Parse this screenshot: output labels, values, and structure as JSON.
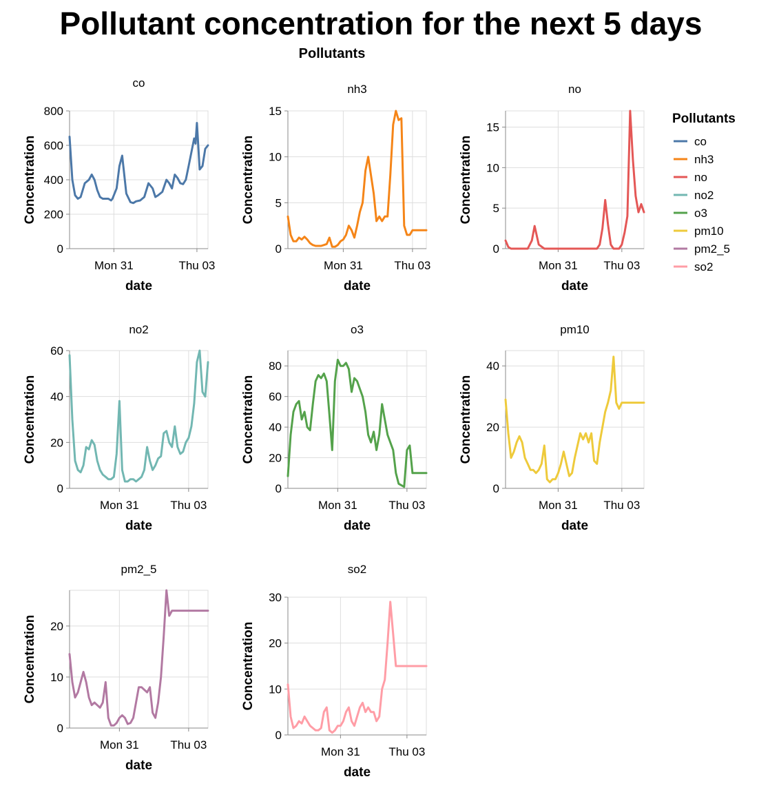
{
  "title": "Pollutant concentration for the next 5 days",
  "facet_header": "Pollutants",
  "legend": {
    "title": "Pollutants",
    "items": [
      {
        "label": "co",
        "color": "#4c78a8"
      },
      {
        "label": "nh3",
        "color": "#f58518"
      },
      {
        "label": "no",
        "color": "#e45756"
      },
      {
        "label": "no2",
        "color": "#72b7b2"
      },
      {
        "label": "o3",
        "color": "#54a24b"
      },
      {
        "label": "pm10",
        "color": "#eeca3b"
      },
      {
        "label": "pm2_5",
        "color": "#b279a2"
      },
      {
        "label": "so2",
        "color": "#ff9da6"
      }
    ]
  },
  "chart_data": [
    {
      "type": "line",
      "facet": "co",
      "color": "#4c78a8",
      "xlabel": "date",
      "ylabel": "Concentration",
      "ylim": [
        0,
        800
      ],
      "yticks": [
        0,
        200,
        400,
        600,
        800
      ],
      "xlim": [
        0,
        5
      ],
      "xticks": [
        {
          "x": 1.6,
          "label": "Mon 31"
        },
        {
          "x": 4.6,
          "label": "Thu 03"
        }
      ],
      "x": [
        0.0,
        0.1,
        0.2,
        0.3,
        0.4,
        0.55,
        0.7,
        0.8,
        0.9,
        1.0,
        1.1,
        1.2,
        1.3,
        1.4,
        1.5,
        1.55,
        1.6,
        1.7,
        1.8,
        1.9,
        2.05,
        2.2,
        2.3,
        2.4,
        2.55,
        2.7,
        2.85,
        3.0,
        3.1,
        3.2,
        3.35,
        3.5,
        3.6,
        3.7,
        3.8,
        3.9,
        4.0,
        4.1,
        4.2,
        4.3,
        4.4,
        4.5,
        4.55,
        4.6,
        4.7,
        4.8,
        4.9,
        5.0
      ],
      "y": [
        650,
        400,
        310,
        290,
        300,
        380,
        400,
        430,
        400,
        340,
        300,
        290,
        290,
        290,
        280,
        290,
        310,
        350,
        480,
        540,
        320,
        270,
        265,
        275,
        280,
        300,
        380,
        350,
        300,
        310,
        330,
        400,
        380,
        350,
        430,
        410,
        380,
        375,
        400,
        480,
        560,
        640,
        610,
        730,
        460,
        480,
        580,
        600
      ]
    },
    {
      "type": "line",
      "facet": "nh3",
      "color": "#f58518",
      "xlabel": "date",
      "ylabel": "Concentration",
      "ylim": [
        0,
        15
      ],
      "yticks": [
        0,
        5,
        10,
        15
      ],
      "xlim": [
        0,
        5
      ],
      "xticks": [
        {
          "x": 2.0,
          "label": "Mon 31"
        },
        {
          "x": 4.5,
          "label": "Thu 03"
        }
      ],
      "x": [
        0.0,
        0.1,
        0.2,
        0.3,
        0.4,
        0.5,
        0.6,
        0.7,
        0.8,
        0.9,
        1.0,
        1.1,
        1.2,
        1.3,
        1.4,
        1.5,
        1.6,
        1.7,
        1.8,
        1.9,
        2.0,
        2.1,
        2.2,
        2.3,
        2.4,
        2.5,
        2.6,
        2.7,
        2.8,
        2.9,
        3.0,
        3.1,
        3.2,
        3.3,
        3.4,
        3.5,
        3.6,
        3.7,
        3.8,
        3.9,
        4.0,
        4.1,
        4.2,
        4.3,
        4.4,
        4.5,
        4.6,
        4.7,
        4.8,
        4.9,
        5.0
      ],
      "y": [
        3.5,
        1.5,
        0.8,
        0.8,
        1.2,
        1.0,
        1.3,
        1.0,
        0.6,
        0.4,
        0.3,
        0.3,
        0.3,
        0.4,
        0.5,
        1.2,
        0.2,
        0.2,
        0.4,
        0.8,
        1.0,
        1.5,
        2.5,
        2.0,
        1.2,
        2.5,
        4.0,
        5.0,
        8.5,
        10.0,
        8.0,
        6.0,
        3.0,
        3.5,
        3.0,
        3.5,
        3.5,
        8.0,
        13.5,
        15.2,
        14.0,
        14.2,
        2.5,
        1.5,
        1.5,
        2.0,
        2.0,
        2.0,
        2.0,
        2.0,
        2.0
      ]
    },
    {
      "type": "line",
      "facet": "no",
      "color": "#e45756",
      "xlabel": "date",
      "ylabel": "Concentration",
      "ylim": [
        0,
        17
      ],
      "yticks": [
        0,
        5,
        10,
        15
      ],
      "xlim": [
        0,
        5
      ],
      "xticks": [
        {
          "x": 1.9,
          "label": "Mon 31"
        },
        {
          "x": 4.2,
          "label": "Thu 03"
        }
      ],
      "x": [
        0.0,
        0.1,
        0.2,
        0.4,
        0.6,
        0.8,
        0.95,
        1.05,
        1.2,
        1.4,
        1.6,
        1.8,
        1.9,
        2.05,
        2.15,
        2.3,
        2.5,
        2.7,
        2.9,
        3.1,
        3.2,
        3.3,
        3.4,
        3.5,
        3.6,
        3.7,
        3.8,
        3.9,
        4.0,
        4.1,
        4.2,
        4.3,
        4.4,
        4.5,
        4.6,
        4.7,
        4.8,
        4.9,
        5.0
      ],
      "y": [
        1.0,
        0.2,
        0.0,
        0.0,
        0.0,
        0.0,
        1.0,
        2.8,
        0.5,
        0.0,
        0.0,
        0.0,
        0.0,
        0.0,
        0.0,
        0.0,
        0.0,
        0.0,
        0.0,
        0.0,
        0.0,
        0.0,
        0.5,
        2.5,
        6.0,
        3.0,
        0.5,
        0.0,
        0.0,
        0.0,
        0.5,
        2.0,
        4.0,
        17.0,
        11.0,
        6.5,
        4.5,
        5.5,
        4.5
      ]
    },
    {
      "type": "line",
      "facet": "no2",
      "color": "#72b7b2",
      "xlabel": "date",
      "ylabel": "Concentration",
      "ylim": [
        0,
        60
      ],
      "yticks": [
        0,
        20,
        40,
        60
      ],
      "xlim": [
        0,
        5
      ],
      "xticks": [
        {
          "x": 1.8,
          "label": "Mon 31"
        },
        {
          "x": 4.3,
          "label": "Thu 03"
        }
      ],
      "x": [
        0.0,
        0.1,
        0.2,
        0.3,
        0.4,
        0.5,
        0.6,
        0.7,
        0.8,
        0.9,
        1.0,
        1.1,
        1.2,
        1.3,
        1.4,
        1.5,
        1.6,
        1.7,
        1.8,
        1.9,
        2.0,
        2.1,
        2.2,
        2.3,
        2.4,
        2.5,
        2.6,
        2.7,
        2.8,
        2.9,
        3.0,
        3.1,
        3.2,
        3.3,
        3.4,
        3.5,
        3.6,
        3.7,
        3.8,
        3.9,
        4.0,
        4.1,
        4.2,
        4.3,
        4.4,
        4.5,
        4.6,
        4.7,
        4.8,
        4.9,
        5.0
      ],
      "y": [
        58,
        30,
        12,
        8,
        7,
        10,
        18,
        17,
        21,
        19,
        12,
        8,
        6,
        5,
        4,
        4,
        5,
        15,
        38,
        8,
        3,
        3,
        4,
        4,
        3,
        4,
        5,
        8,
        18,
        12,
        8,
        10,
        13,
        14,
        24,
        25,
        20,
        18,
        27,
        18,
        15,
        16,
        20,
        22,
        27,
        37,
        55,
        62,
        42,
        40,
        55
      ]
    },
    {
      "type": "line",
      "facet": "o3",
      "color": "#54a24b",
      "xlabel": "date",
      "ylabel": "Concentration",
      "ylim": [
        0,
        90
      ],
      "yticks": [
        0,
        20,
        40,
        60,
        80
      ],
      "xlim": [
        0,
        5
      ],
      "xticks": [
        {
          "x": 1.8,
          "label": "Mon 31"
        },
        {
          "x": 4.3,
          "label": "Thu 03"
        }
      ],
      "x": [
        0.0,
        0.1,
        0.2,
        0.3,
        0.4,
        0.5,
        0.6,
        0.7,
        0.8,
        0.9,
        1.0,
        1.1,
        1.2,
        1.3,
        1.4,
        1.5,
        1.6,
        1.7,
        1.8,
        1.9,
        2.0,
        2.1,
        2.2,
        2.3,
        2.4,
        2.5,
        2.6,
        2.7,
        2.8,
        2.9,
        3.0,
        3.1,
        3.2,
        3.3,
        3.4,
        3.5,
        3.6,
        3.7,
        3.8,
        3.9,
        4.0,
        4.1,
        4.2,
        4.3,
        4.4,
        4.5,
        4.6,
        4.7,
        4.8,
        4.9,
        5.0
      ],
      "y": [
        8,
        35,
        50,
        55,
        57,
        45,
        50,
        40,
        38,
        55,
        70,
        74,
        72,
        75,
        70,
        48,
        25,
        70,
        84,
        80,
        80,
        82,
        78,
        63,
        72,
        70,
        65,
        60,
        50,
        35,
        30,
        37,
        25,
        35,
        55,
        45,
        35,
        30,
        25,
        10,
        3,
        2,
        1,
        25,
        28,
        10,
        10,
        10,
        10,
        10,
        10
      ]
    },
    {
      "type": "line",
      "facet": "pm10",
      "color": "#eeca3b",
      "xlabel": "date",
      "ylabel": "Concentration",
      "ylim": [
        0,
        45
      ],
      "yticks": [
        0,
        20,
        40
      ],
      "xlim": [
        0,
        5
      ],
      "xticks": [
        {
          "x": 1.9,
          "label": "Mon 31"
        },
        {
          "x": 4.2,
          "label": "Thu 03"
        }
      ],
      "x": [
        0.0,
        0.1,
        0.2,
        0.3,
        0.4,
        0.5,
        0.6,
        0.7,
        0.8,
        0.9,
        1.0,
        1.1,
        1.2,
        1.3,
        1.4,
        1.5,
        1.6,
        1.7,
        1.8,
        1.9,
        2.0,
        2.1,
        2.2,
        2.3,
        2.4,
        2.5,
        2.6,
        2.7,
        2.8,
        2.9,
        3.0,
        3.1,
        3.2,
        3.3,
        3.4,
        3.5,
        3.6,
        3.7,
        3.8,
        3.9,
        4.0,
        4.1,
        4.2,
        4.3,
        4.4,
        4.5,
        4.6,
        4.7,
        4.8,
        4.9,
        5.0
      ],
      "y": [
        29,
        18,
        10,
        12,
        15,
        17,
        15,
        10,
        8,
        6,
        6,
        5,
        6,
        8,
        14,
        3,
        2,
        3,
        3,
        5,
        8,
        12,
        8,
        4,
        5,
        10,
        14,
        18,
        16,
        18,
        15,
        18,
        9,
        8,
        15,
        20,
        25,
        28,
        32,
        43,
        28,
        26,
        28,
        28,
        28,
        28,
        28,
        28,
        28,
        28,
        28
      ]
    },
    {
      "type": "line",
      "facet": "pm2_5",
      "color": "#b279a2",
      "xlabel": "date",
      "ylabel": "Concentration",
      "ylim": [
        0,
        27
      ],
      "yticks": [
        0,
        10,
        20
      ],
      "xlim": [
        0,
        5
      ],
      "xticks": [
        {
          "x": 1.8,
          "label": "Mon 31"
        },
        {
          "x": 4.3,
          "label": "Thu 03"
        }
      ],
      "x": [
        0.0,
        0.1,
        0.2,
        0.3,
        0.4,
        0.5,
        0.6,
        0.7,
        0.8,
        0.9,
        1.0,
        1.1,
        1.2,
        1.3,
        1.4,
        1.5,
        1.6,
        1.7,
        1.8,
        1.9,
        2.0,
        2.1,
        2.2,
        2.3,
        2.4,
        2.5,
        2.6,
        2.7,
        2.8,
        2.9,
        3.0,
        3.1,
        3.2,
        3.3,
        3.4,
        3.5,
        3.6,
        3.7,
        3.8,
        3.9,
        4.0,
        4.1,
        4.2,
        4.3,
        4.4,
        4.5,
        4.6,
        4.7,
        4.8,
        4.9,
        5.0
      ],
      "y": [
        14.5,
        9,
        6,
        7,
        9,
        11,
        9,
        6,
        4.5,
        5,
        4.5,
        4,
        5,
        9,
        2,
        0.5,
        0.5,
        1,
        2,
        2.5,
        2,
        0.8,
        1,
        2,
        5,
        8,
        8,
        7.5,
        7,
        8,
        3,
        2,
        5,
        10,
        18,
        27,
        22,
        23,
        23,
        23,
        23,
        23,
        23,
        23,
        23,
        23,
        23,
        23,
        23,
        23,
        23
      ]
    },
    {
      "type": "line",
      "facet": "so2",
      "color": "#ff9da6",
      "xlabel": "date",
      "ylabel": "Concentration",
      "ylim": [
        0,
        30
      ],
      "yticks": [
        0,
        10,
        20,
        30
      ],
      "xlim": [
        0,
        5
      ],
      "xticks": [
        {
          "x": 1.9,
          "label": "Mon 31"
        },
        {
          "x": 4.3,
          "label": "Thu 03"
        }
      ],
      "x": [
        0.0,
        0.1,
        0.2,
        0.3,
        0.4,
        0.5,
        0.6,
        0.7,
        0.8,
        0.9,
        1.0,
        1.1,
        1.2,
        1.3,
        1.4,
        1.5,
        1.6,
        1.7,
        1.8,
        1.9,
        2.0,
        2.1,
        2.2,
        2.3,
        2.4,
        2.5,
        2.6,
        2.7,
        2.8,
        2.9,
        3.0,
        3.1,
        3.2,
        3.3,
        3.4,
        3.5,
        3.6,
        3.7,
        3.8,
        3.9,
        4.0,
        4.1,
        4.2,
        4.3,
        4.4,
        4.5,
        4.6,
        4.7,
        4.8,
        4.9,
        5.0
      ],
      "y": [
        11,
        4,
        1.5,
        2,
        3,
        2.5,
        4,
        3,
        2,
        1.5,
        1,
        1,
        1.5,
        5,
        6,
        1,
        0.5,
        1,
        2,
        2,
        3,
        5,
        6,
        3,
        2,
        4,
        6,
        7,
        5,
        6,
        5,
        5,
        3,
        4,
        10,
        12,
        20,
        29,
        22,
        15,
        15,
        15,
        15,
        15,
        15,
        15,
        15,
        15,
        15,
        15,
        15
      ]
    }
  ]
}
